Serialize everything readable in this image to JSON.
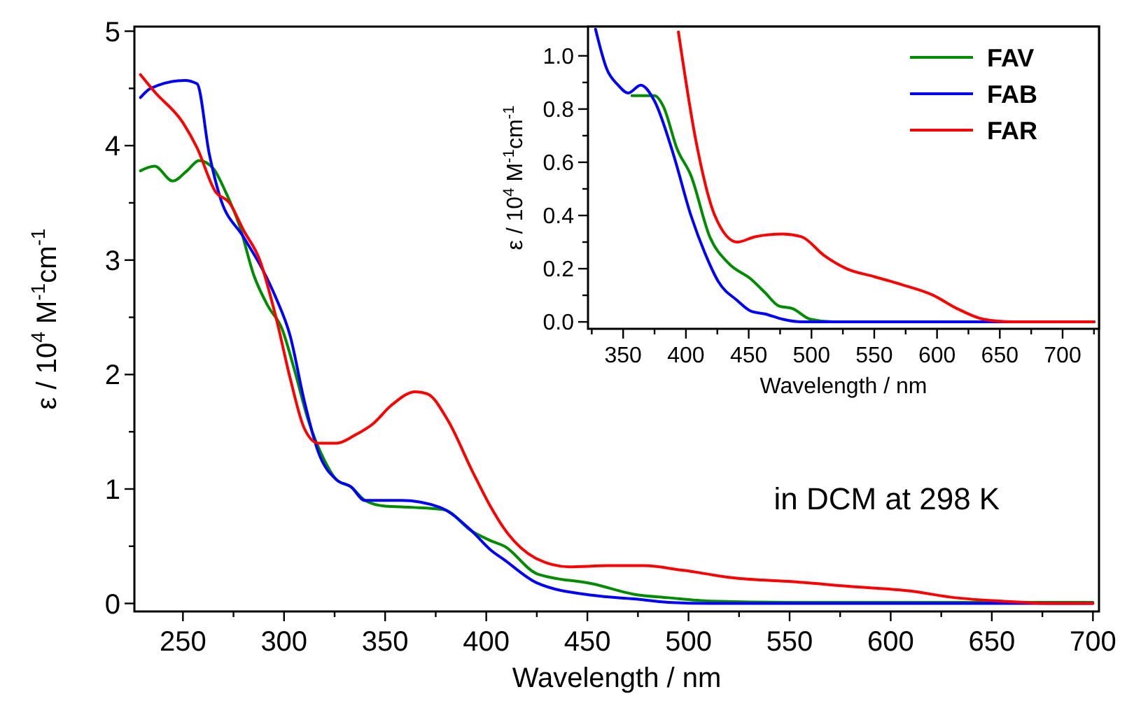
{
  "chart_data": [
    {
      "type": "line",
      "xlabel": "Wavelength  /  nm",
      "ylabel": "ε  /  10$^{4}$ M$^{-1}$cm$^{-1}$",
      "xlim": [
        226,
        703
      ],
      "ylim": [
        -0.07,
        5.04
      ],
      "xticks": [
        250,
        {
          "value": 275,
          "label": null
        },
        300,
        {
          "value": 325,
          "label": null
        },
        350,
        {
          "value": 375,
          "label": null
        },
        400,
        {
          "value": 425,
          "label": null
        },
        450,
        {
          "value": 475,
          "label": null
        },
        500,
        {
          "value": 525,
          "label": null
        },
        550,
        {
          "value": 575,
          "label": null
        },
        600,
        {
          "value": 625,
          "label": null
        },
        650,
        {
          "value": 675,
          "label": null
        },
        700
      ],
      "yticks": [
        0,
        {
          "value": 0.5,
          "label": null
        },
        1,
        {
          "value": 1.5,
          "label": null
        },
        2,
        {
          "value": 2.5,
          "label": null
        },
        3,
        {
          "value": 3.5,
          "label": null
        },
        4,
        {
          "value": 4.5,
          "label": null
        },
        5
      ],
      "grid": false,
      "legend": false,
      "line_style": "solid",
      "marker": "none",
      "annotations": [
        "in DCM at 298 K"
      ],
      "series": [
        {
          "color": "#008c00",
          "x": [
            229,
            236,
            245,
            252,
            258,
            265,
            271,
            278,
            285,
            292,
            299,
            305,
            312,
            320,
            326,
            333,
            340,
            350,
            363,
            379,
            393,
            402,
            409,
            425,
            453,
            473,
            490,
            511,
            550,
            600,
            700
          ],
          "values": [
            3.78,
            3.82,
            3.69,
            3.78,
            3.87,
            3.8,
            3.6,
            3.3,
            2.87,
            2.6,
            2.4,
            2.05,
            1.6,
            1.25,
            1.08,
            1.02,
            0.9,
            0.85,
            0.84,
            0.82,
            0.63,
            0.55,
            0.5,
            0.26,
            0.17,
            0.08,
            0.05,
            0.02,
            0.01,
            0.01,
            0.01
          ]
        },
        {
          "color": "#0000ff",
          "x": [
            229,
            234,
            251,
            257,
            263,
            268,
            280,
            289,
            296,
            303,
            310,
            317,
            326,
            333,
            340,
            358,
            377,
            393,
            402,
            409,
            425,
            453,
            473,
            490,
            511,
            600,
            700
          ],
          "values": [
            4.42,
            4.5,
            4.57,
            4.54,
            3.93,
            3.57,
            3.2,
            2.93,
            2.67,
            2.34,
            1.77,
            1.32,
            1.08,
            1.02,
            0.9,
            0.9,
            0.84,
            0.63,
            0.47,
            0.38,
            0.18,
            0.07,
            0.04,
            0.01,
            0,
            0,
            0
          ]
        },
        {
          "color": "#ff0000",
          "x": [
            229,
            236,
            250,
            257,
            266,
            273,
            280,
            288,
            296,
            303,
            310,
            317,
            326,
            335,
            344,
            353,
            365,
            371,
            381,
            393,
            402,
            409,
            425,
            441,
            460,
            478,
            497,
            524,
            552,
            579,
            609,
            632,
            655,
            680,
            700
          ],
          "values": [
            4.62,
            4.47,
            4.2,
            3.98,
            3.6,
            3.5,
            3.26,
            3.0,
            2.5,
            1.97,
            1.53,
            1.4,
            1.4,
            1.47,
            1.57,
            1.73,
            1.85,
            1.83,
            1.6,
            1.16,
            0.85,
            0.65,
            0.39,
            0.32,
            0.33,
            0.33,
            0.29,
            0.22,
            0.19,
            0.15,
            0.11,
            0.05,
            0.02,
            0,
            0
          ]
        }
      ]
    },
    {
      "type": "line",
      "xlabel": "Wavelength  /  nm",
      "ylabel": "ε  /  10$^{4}$ M$^{-1}$cm$^{-1}$",
      "xlim": [
        322,
        729
      ],
      "ylim": [
        -0.026,
        1.11
      ],
      "xticks": [
        {
          "value": 325,
          "label": null
        },
        350,
        {
          "value": 375,
          "label": null
        },
        400,
        {
          "value": 425,
          "label": null
        },
        450,
        {
          "value": 475,
          "label": null
        },
        500,
        {
          "value": 525,
          "label": null
        },
        550,
        {
          "value": 575,
          "label": null
        },
        600,
        {
          "value": 625,
          "label": null
        },
        650,
        {
          "value": 675,
          "label": null
        },
        700,
        {
          "value": 725,
          "label": null
        }
      ],
      "yticks": [
        {
          "value": 0,
          "label": "0.0"
        },
        {
          "value": 0.1,
          "label": null
        },
        {
          "value": 0.2,
          "label": "0.2"
        },
        {
          "value": 0.3,
          "label": null
        },
        {
          "value": 0.4,
          "label": "0.4"
        },
        {
          "value": 0.5,
          "label": null
        },
        {
          "value": 0.6,
          "label": "0.6"
        },
        {
          "value": 0.7,
          "label": null
        },
        {
          "value": 0.8,
          "label": "0.8"
        },
        {
          "value": 0.9,
          "label": null
        },
        {
          "value": 1,
          "label": "1.0"
        }
      ],
      "grid": false,
      "legend": "top right",
      "line_style": "solid",
      "marker": "none",
      "series": [
        {
          "name": "FAV",
          "color": "#008c00",
          "x": [
            357,
            375,
            382,
            393,
            404,
            419,
            434,
            452,
            463,
            474,
            485,
            499,
            517,
            600,
            725
          ],
          "values": [
            0.85,
            0.85,
            0.81,
            0.65,
            0.55,
            0.32,
            0.22,
            0.16,
            0.11,
            0.06,
            0.05,
            0.01,
            0,
            0,
            0
          ]
        },
        {
          "name": "FAB",
          "color": "#0000ff",
          "x": [
            328,
            337,
            346,
            354,
            364,
            375,
            390,
            404,
            415,
            426,
            441,
            452,
            463,
            477,
            492,
            600,
            725
          ],
          "values": [
            1.1,
            0.95,
            0.89,
            0.86,
            0.89,
            0.83,
            0.63,
            0.4,
            0.26,
            0.15,
            0.08,
            0.04,
            0.03,
            0.01,
            0,
            0,
            0
          ]
        },
        {
          "name": "FAR",
          "color": "#ff0000",
          "x": [
            394,
            408,
            423,
            441,
            455,
            477,
            492,
            510,
            528,
            550,
            572,
            597,
            616,
            637,
            660,
            700,
            725
          ],
          "values": [
            1.09,
            0.68,
            0.4,
            0.3,
            0.32,
            0.33,
            0.32,
            0.25,
            0.2,
            0.17,
            0.14,
            0.1,
            0.05,
            0.01,
            0,
            0,
            0
          ]
        }
      ]
    }
  ]
}
